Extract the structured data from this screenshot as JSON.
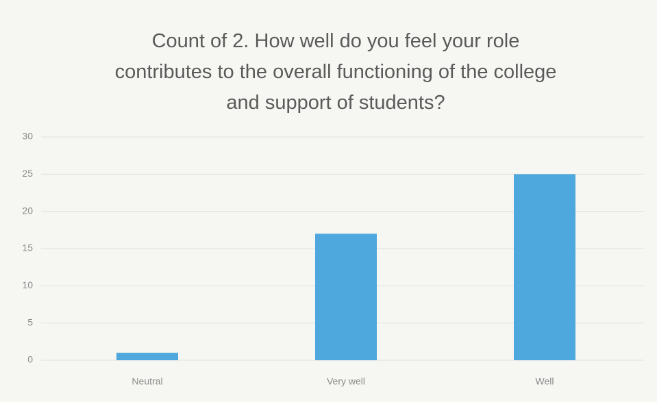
{
  "chart_data": {
    "type": "bar",
    "title": "Count of 2. How well do you feel your role contributes to the overall functioning of the college and support of students?",
    "categories": [
      "Neutral",
      "Very well",
      "Well"
    ],
    "values": [
      1,
      17,
      25
    ],
    "color": "#4ea8dd",
    "ylim": [
      0,
      30
    ],
    "yticks": [
      0,
      5,
      10,
      15,
      20,
      25,
      30
    ],
    "grid": true
  }
}
